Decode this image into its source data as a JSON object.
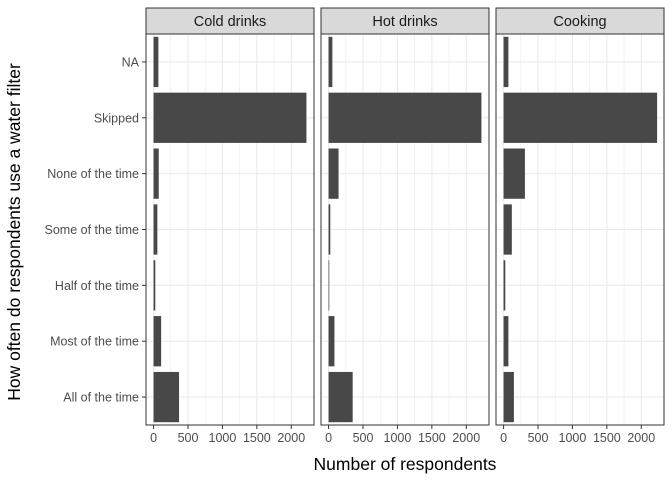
{
  "chart_data": {
    "type": "bar",
    "orientation": "horizontal",
    "facets": [
      "Cold drinks",
      "Hot drinks",
      "Cooking"
    ],
    "categories": [
      "NA",
      "Skipped",
      "None of the time",
      "Some of the time",
      "Half of the time",
      "Most of the time",
      "All of the time"
    ],
    "series": [
      {
        "facet": "Cold drinks",
        "values": [
          70,
          2220,
          75,
          55,
          25,
          110,
          370
        ]
      },
      {
        "facet": "Hot drinks",
        "values": [
          55,
          2220,
          145,
          25,
          10,
          85,
          350
        ]
      },
      {
        "facet": "Cooking",
        "values": [
          70,
          2230,
          310,
          120,
          25,
          70,
          150
        ]
      }
    ],
    "xlabel": "Number of respondents",
    "ylabel": "How often do respondents use a water filter",
    "xticks": [
      0,
      500,
      1000,
      1500,
      2000
    ],
    "xlim": [
      -110,
      2330
    ],
    "grid": true,
    "bar_color": "#484848",
    "strip_color": "#d9d9d9",
    "grid_color": "#ebebeb"
  }
}
